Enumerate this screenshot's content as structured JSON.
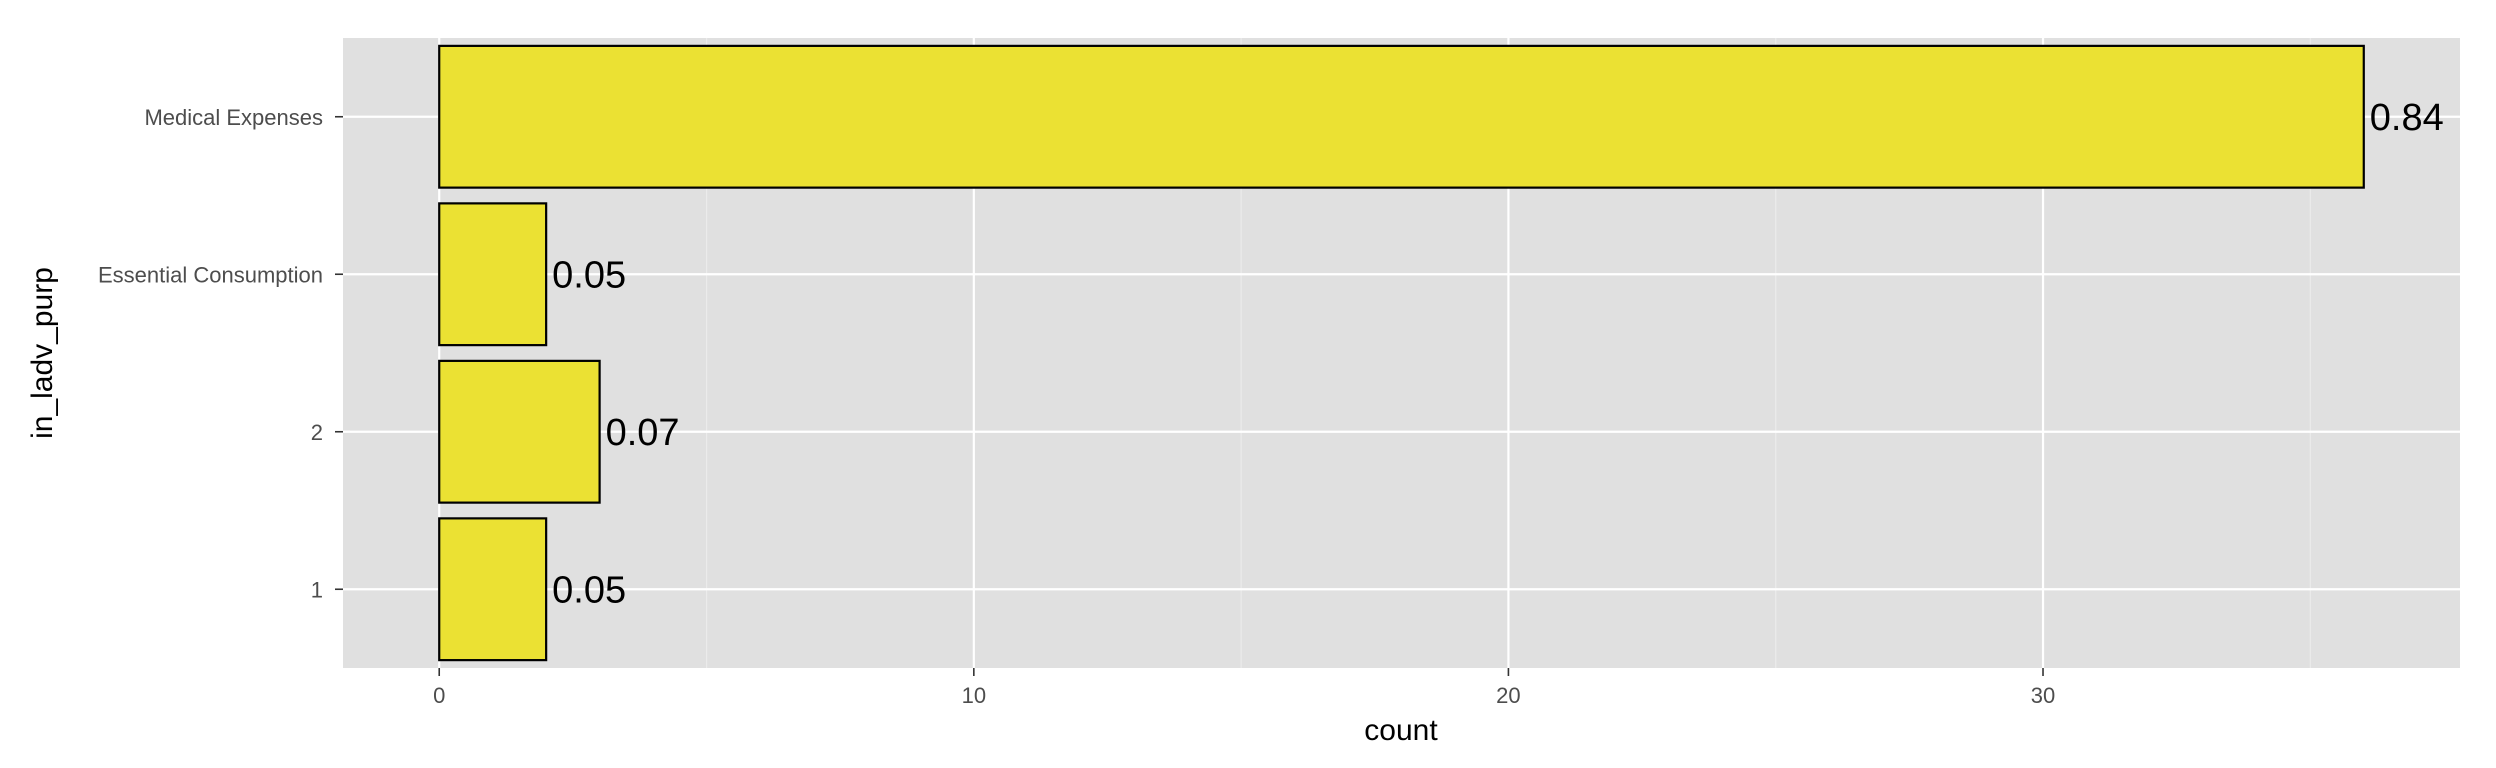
{
  "chart_data": {
    "type": "bar",
    "orientation": "horizontal",
    "title": "",
    "xlabel": "count",
    "ylabel": "in_ladv_purp",
    "categories": [
      "1",
      "2",
      "Essential Consumption",
      "Medical Expenses"
    ],
    "values": [
      2,
      3,
      2,
      36
    ],
    "data_labels": [
      "0.05",
      "0.07",
      "0.05",
      "0.84"
    ],
    "xlim": [
      -1.8,
      37.8
    ],
    "xticks": [
      0,
      10,
      20,
      30
    ],
    "xtick_labels": [
      "0",
      "10",
      "20",
      "30"
    ],
    "grid": true,
    "legend": "none",
    "colors": {
      "bar_fill": "#ebe133",
      "bar_stroke": "#000000",
      "panel_bg": "#e0e0e0",
      "grid_major": "#ffffff",
      "grid_minor": "#ebebeb"
    }
  }
}
